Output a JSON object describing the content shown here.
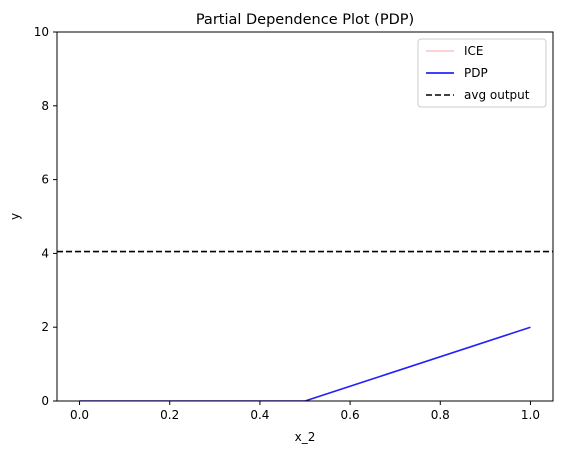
{
  "chart_data": {
    "type": "line",
    "title": "Partial Dependence Plot (PDP)",
    "xlabel": "x_2",
    "ylabel": "y",
    "xlim": [
      -0.05,
      1.05
    ],
    "ylim": [
      0,
      10
    ],
    "xticks": [
      0.0,
      0.2,
      0.4,
      0.6,
      0.8,
      1.0
    ],
    "xtick_labels": [
      "0.0",
      "0.2",
      "0.4",
      "0.6",
      "0.8",
      "1.0"
    ],
    "yticks": [
      0,
      2,
      4,
      6,
      8,
      10
    ],
    "ytick_labels": [
      "0",
      "2",
      "4",
      "6",
      "8",
      "10"
    ],
    "grid": false,
    "legend_position": "top-right",
    "series": [
      {
        "name": "ICE",
        "color": "#ffc0cb",
        "style": "solid",
        "x": [
          0.0,
          0.5,
          1.0
        ],
        "y": [
          0.0,
          0.0,
          2.0
        ]
      },
      {
        "name": "PDP",
        "color": "#0000ff",
        "style": "solid",
        "x": [
          0.0,
          0.5,
          1.0
        ],
        "y": [
          0.0,
          0.0,
          2.0
        ]
      },
      {
        "name": "avg output",
        "color": "#000000",
        "style": "dashed",
        "hline": 4.05
      }
    ]
  }
}
